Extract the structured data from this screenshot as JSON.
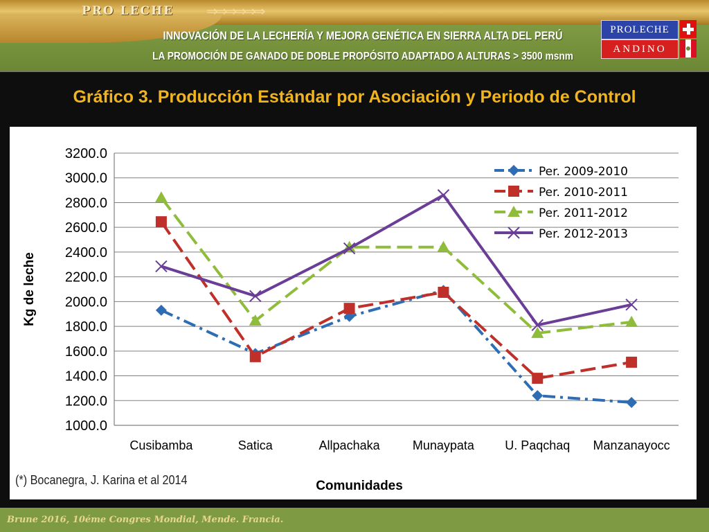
{
  "header": {
    "brand": "PRO LECHE",
    "brand_arrows": "⇒⇒⇒⇒⇒⇒",
    "headline_1": "INNOVACIÓN DE LA LECHERÍA Y MEJORA GENÉTICA EN SIERRA ALTA DEL PERÚ",
    "headline_2": "LA PROMOCIÓN DE GANADO DE DOBLE PROPÓSITO ADAPTADO A ALTURAS > 3500 msnm",
    "logo_top": "PROLECHE",
    "logo_bottom": "ANDINO"
  },
  "citation": "(*) Bocanegra, J. Karina et al 2014",
  "footer": {
    "text": "Brune 2016, 10éme Congres Mondial, Mende. Francia."
  },
  "colors": {
    "title": "#f0b41e",
    "series_2009": "#2e6db4",
    "series_2010": "#c0302a",
    "series_2011": "#8fbc3a",
    "series_2012": "#6a3d96",
    "grid": "#808080"
  },
  "chart_data": {
    "type": "line",
    "title": "Gráfico 3. Producción Estándar por Asociación y Periodo de Control",
    "xlabel": "Comunidades",
    "ylabel": "Kg de leche",
    "categories": [
      "Cusibamba",
      "Satica",
      "Allpachaka",
      "Munaypata",
      "U. Paqchaq",
      "Manzanayocc"
    ],
    "ylim": [
      1000,
      3200
    ],
    "yticks": [
      "1000.0",
      "1200.0",
      "1400.0",
      "1600.0",
      "1800.0",
      "2000.0",
      "2200.0",
      "2400.0",
      "2600.0",
      "2800.0",
      "3000.0",
      "3200.0"
    ],
    "grid": true,
    "legend_position": "top-right",
    "series": [
      {
        "name": "Per. 2009-2010",
        "values": [
          1930,
          1580,
          1880,
          2090,
          1240,
          1185
        ],
        "marker": "diamond",
        "dash": "dashdot",
        "color": "#2e6db4"
      },
      {
        "name": "Per. 2010-2011",
        "values": [
          2645,
          1555,
          1945,
          2075,
          1380,
          1510
        ],
        "marker": "square",
        "dash": "dash",
        "color": "#c0302a"
      },
      {
        "name": "Per. 2011-2012",
        "values": [
          2840,
          1845,
          2440,
          2440,
          1745,
          1835
        ],
        "marker": "triangle",
        "dash": "dash",
        "color": "#8fbc3a"
      },
      {
        "name": "Per. 2012-2013",
        "values": [
          2285,
          2045,
          2430,
          2860,
          1810,
          1975
        ],
        "marker": "x",
        "dash": "solid",
        "color": "#6a3d96"
      }
    ]
  }
}
